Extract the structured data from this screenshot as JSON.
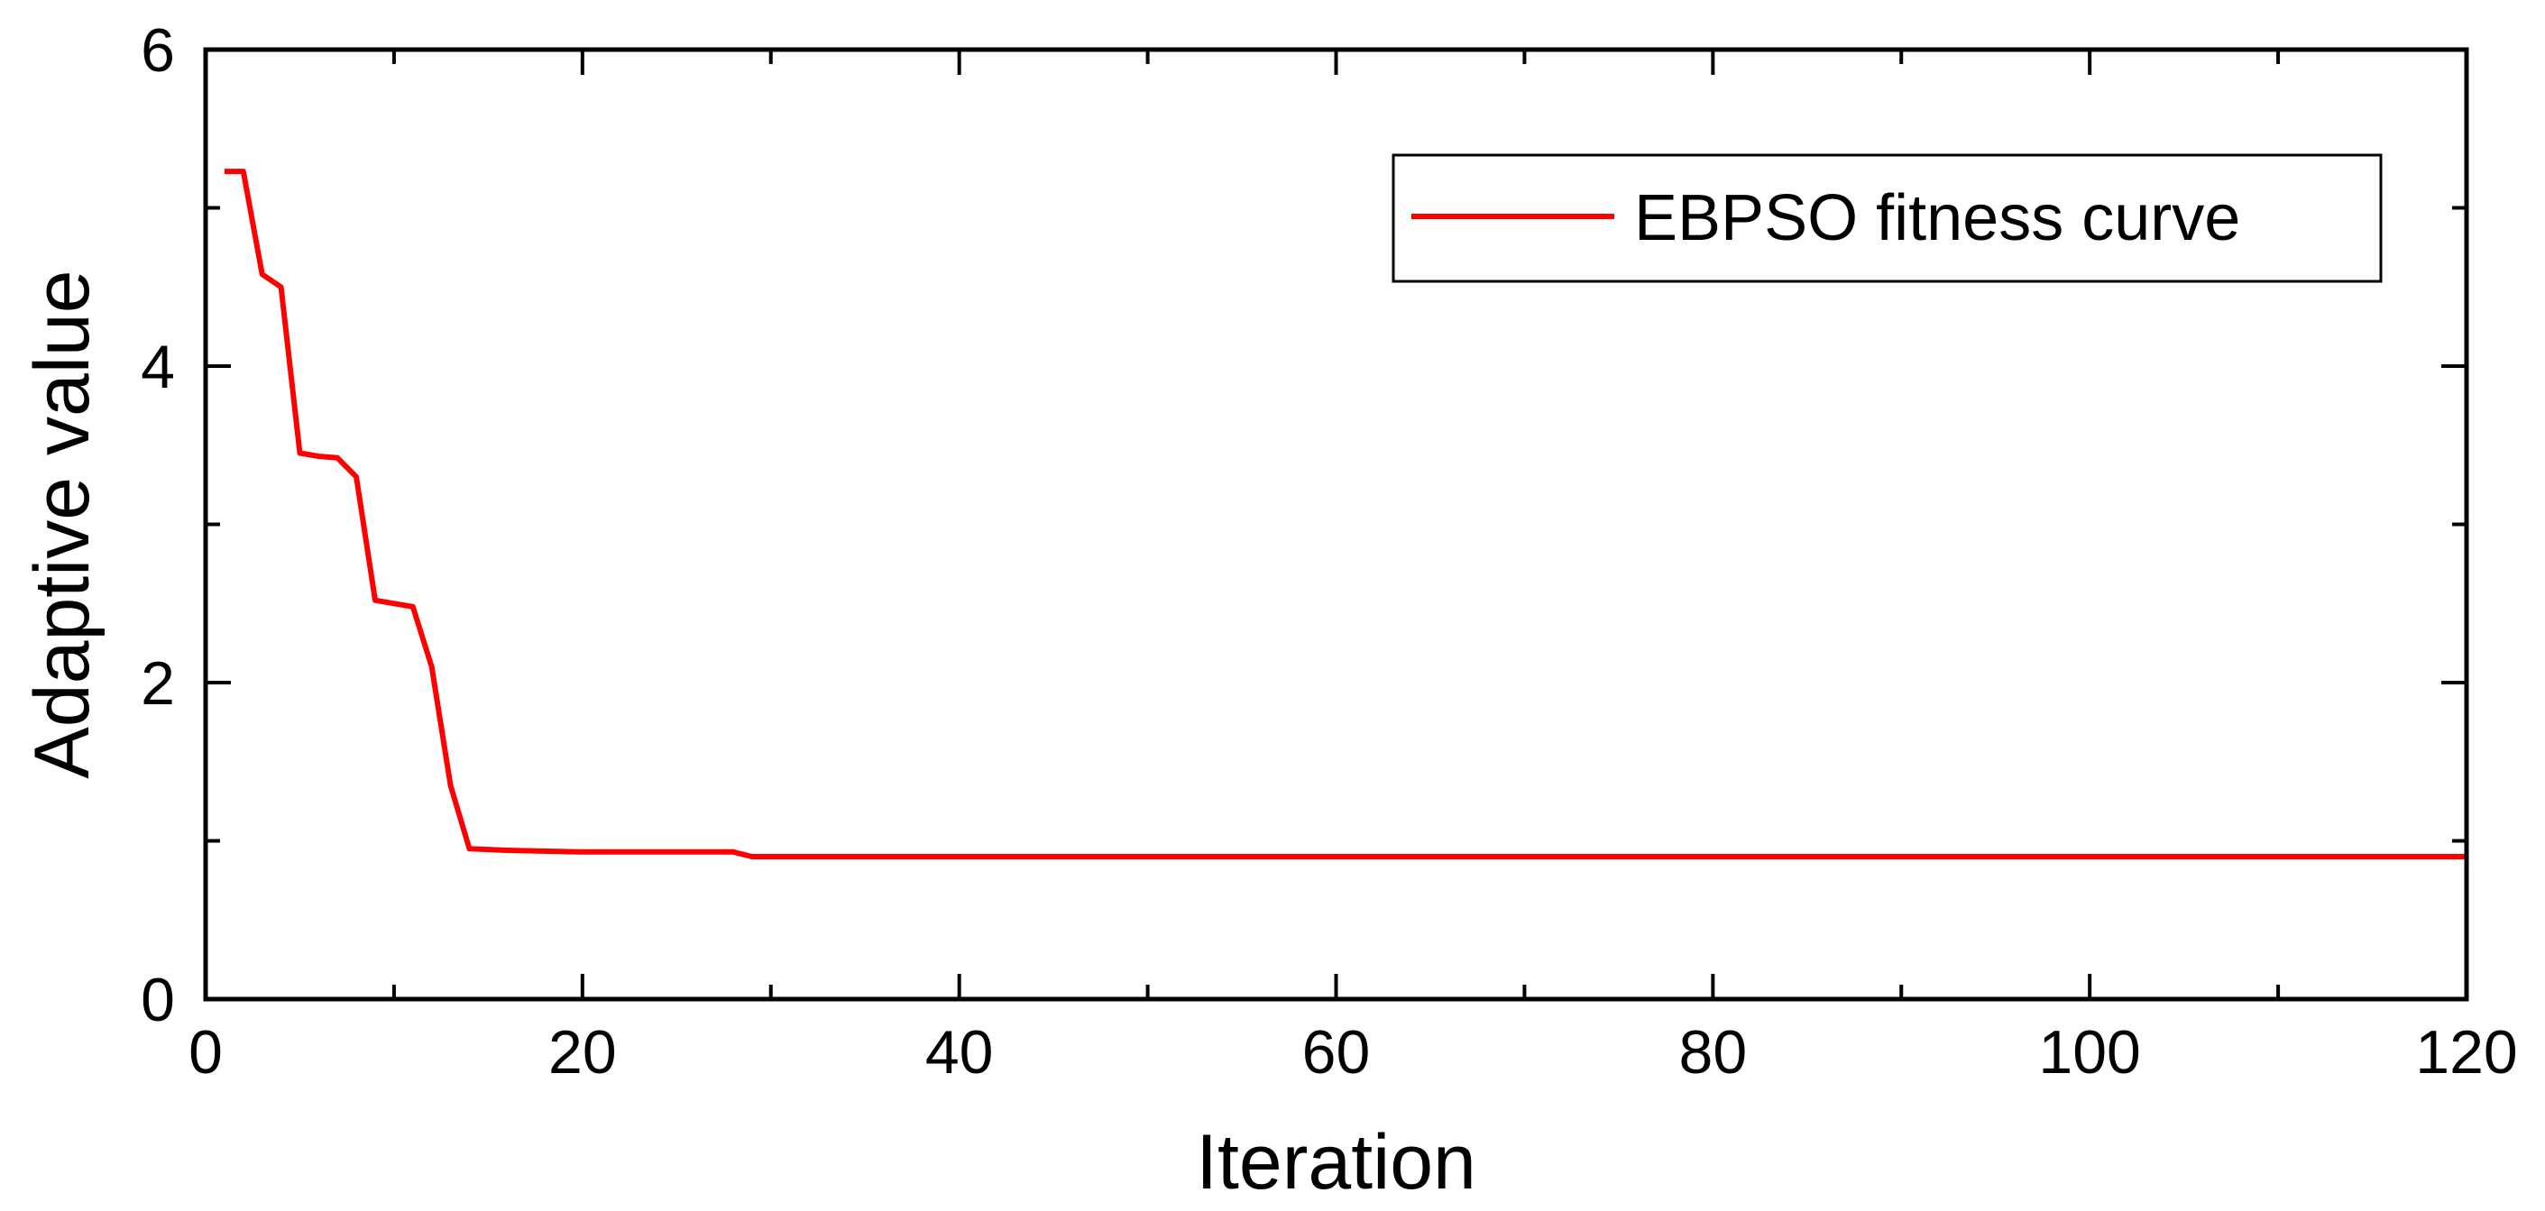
{
  "chart_data": {
    "type": "line",
    "title": "",
    "xlabel": "Iteration",
    "ylabel": "Adaptive value",
    "xlim": [
      0,
      120
    ],
    "ylim": [
      0,
      6
    ],
    "x_major_ticks": [
      0,
      20,
      40,
      60,
      80,
      100,
      120
    ],
    "x_minor_ticks": [
      10,
      30,
      50,
      70,
      90,
      110
    ],
    "y_major_ticks": [
      0,
      2,
      4,
      6
    ],
    "y_minor_ticks": [
      1,
      3,
      5
    ],
    "x_tick_labels": [
      "0",
      "20",
      "40",
      "60",
      "80",
      "100",
      "120"
    ],
    "y_tick_labels": [
      "0",
      "2",
      "4",
      "6"
    ],
    "grid": false,
    "legend_position": "top-right",
    "series": [
      {
        "name": "EBPSO fitness curve",
        "color": "#ff0000",
        "points": [
          [
            1,
            5.23
          ],
          [
            2,
            5.23
          ],
          [
            3,
            4.58
          ],
          [
            4,
            4.5
          ],
          [
            5,
            3.45
          ],
          [
            6,
            3.43
          ],
          [
            7,
            3.42
          ],
          [
            8,
            3.3
          ],
          [
            9,
            2.52
          ],
          [
            10,
            2.5
          ],
          [
            11,
            2.48
          ],
          [
            12,
            2.1
          ],
          [
            13,
            1.35
          ],
          [
            14,
            0.95
          ],
          [
            16,
            0.94
          ],
          [
            20,
            0.93
          ],
          [
            25,
            0.93
          ],
          [
            28,
            0.93
          ],
          [
            29,
            0.9
          ],
          [
            40,
            0.9
          ],
          [
            60,
            0.9
          ],
          [
            80,
            0.9
          ],
          [
            100,
            0.9
          ],
          [
            120,
            0.9
          ]
        ]
      }
    ]
  }
}
